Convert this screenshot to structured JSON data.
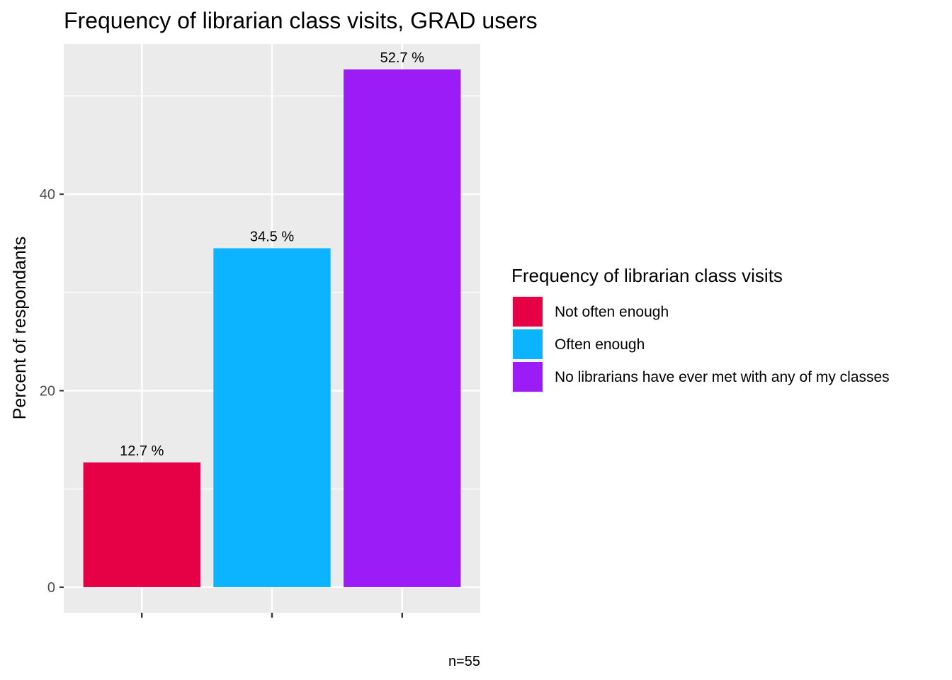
{
  "chart_data": {
    "type": "bar",
    "title": "Frequency of librarian class visits,  GRAD users",
    "xlabel": "",
    "ylabel": "Percent of respondants",
    "ylim": [
      -2.6,
      55.3
    ],
    "yticks": [
      0,
      20,
      40
    ],
    "grid": true,
    "legend_placement": "right",
    "legend_title": "Frequency of librarian class visits",
    "categories": [
      "Not often enough",
      "Often enough",
      "No librarians have ever met with any of my classes"
    ],
    "values": [
      12.7,
      34.5,
      52.7
    ],
    "data_labels": [
      "12.7 %",
      "34.5 %",
      "52.7 %"
    ],
    "colors": [
      "#e60046",
      "#0cb4ff",
      "#9b1cf7"
    ],
    "caption": "n=55"
  },
  "colors": {
    "panel_background": "#ebebeb",
    "grid_line": "#ffffff",
    "tick_color": "#333333"
  }
}
